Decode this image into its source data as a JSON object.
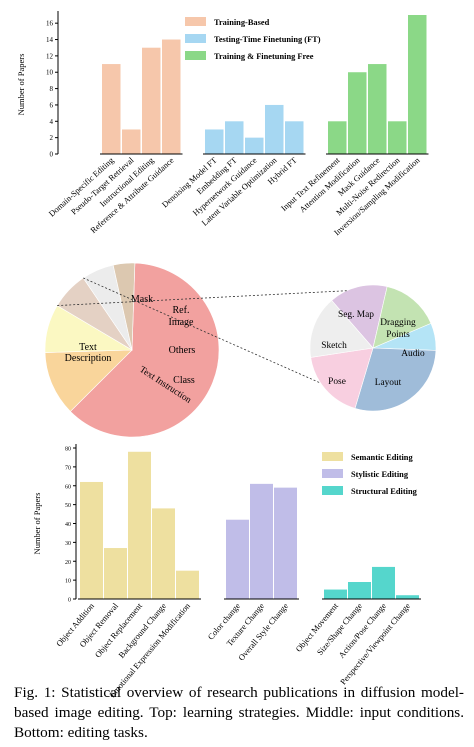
{
  "caption": "Fig. 1: Statistical overview of research publications in diffusion model-based image editing. Top: learning strategies. Middle: input conditions. Bottom: editing tasks.",
  "colors": {
    "training_based": "#f6c7ab",
    "testing_time_ft": "#a6d7f2",
    "training_free": "#8bd887",
    "semantic": "#eee0a0",
    "stylistic": "#c0bde8",
    "structural": "#55d6cc",
    "text_description": "#f2a19f",
    "mask": "#f9d59b",
    "ref_image": "#fbf8c2",
    "others": "#e4d1c4",
    "class": "#ececec",
    "text_instruction": "#dcc8b0",
    "seg_map": "#dcc4e2",
    "dragging_points": "#c3e3b2",
    "audio": "#b4e4f6",
    "layout": "#9fbcd9",
    "pose": "#f8cfe0",
    "sketch": "#eeeeee"
  },
  "chart_data": [
    {
      "type": "bar",
      "ylabel": "Number of Papers",
      "ylim": [
        0,
        17
      ],
      "yticks": [
        0,
        2,
        4,
        6,
        8,
        10,
        12,
        14,
        16
      ],
      "grid": false,
      "legend_position": "top",
      "series": [
        {
          "name": "Training-Based",
          "color": "#f6c7ab",
          "categories": [
            "Domain-Specific Editing",
            "Pseudo-Target Retrieval",
            "Instructional Editing",
            "Reference & Attribute Guidance"
          ],
          "values": [
            11,
            3,
            13,
            14
          ]
        },
        {
          "name": "Testing-Time Finetuning (FT)",
          "color": "#a6d7f2",
          "categories": [
            "Denoising Model FT",
            "Embedding FT",
            "Hypernetwork Guidance",
            "Latent Variable Optimization",
            "Hybrid FT"
          ],
          "values": [
            3,
            4,
            2,
            6,
            4
          ]
        },
        {
          "name": "Training & Finetuning Free",
          "color": "#8bd887",
          "categories": [
            "Input Text Refinement",
            "Attention Modification",
            "Mask Guidance",
            "Multi-Noise Redirection",
            "Inversion/Sampling Modification"
          ],
          "values": [
            4,
            10,
            11,
            4,
            17
          ]
        }
      ]
    },
    {
      "type": "pie",
      "slices": [
        {
          "label": "Text Description",
          "value": 62,
          "color": "#f2a19f"
        },
        {
          "label": "Mask",
          "value": 12,
          "color": "#f9d59b"
        },
        {
          "label": "Ref. Image",
          "value": 9,
          "color": "#fbf8c2"
        },
        {
          "label": "Others",
          "value": 7,
          "color": "#e4d1c4"
        },
        {
          "label": "Class",
          "value": 6,
          "color": "#ececec"
        },
        {
          "label": "Text Instruction",
          "value": 4,
          "color": "#dcc8b0"
        }
      ]
    },
    {
      "type": "pie",
      "slices": [
        {
          "label": "Seg. Map",
          "value": 15,
          "color": "#dcc4e2"
        },
        {
          "label": "Dragging Points",
          "value": 15,
          "color": "#c3e3b2"
        },
        {
          "label": "Audio",
          "value": 7,
          "color": "#b4e4f6"
        },
        {
          "label": "Layout",
          "value": 29,
          "color": "#9fbcd9"
        },
        {
          "label": "Pose",
          "value": 18,
          "color": "#f8cfe0"
        },
        {
          "label": "Sketch",
          "value": 16,
          "color": "#eeeeee"
        }
      ]
    },
    {
      "type": "bar",
      "ylabel": "Number of Papers",
      "ylim": [
        0,
        80
      ],
      "yticks": [
        0,
        10,
        20,
        30,
        40,
        50,
        60,
        70,
        80
      ],
      "grid": false,
      "legend_position": "top-right",
      "series": [
        {
          "name": "Semantic Editing",
          "color": "#eee0a0",
          "categories": [
            "Object Addition",
            "Object Removal",
            "Object Replacement",
            "Background Change",
            "Emotional Expression Modification"
          ],
          "values": [
            62,
            27,
            78,
            48,
            15
          ]
        },
        {
          "name": "Stylistic Editing",
          "color": "#c0bde8",
          "categories": [
            "Color change",
            "Texture Change",
            "Overall Style Change"
          ],
          "values": [
            42,
            61,
            59
          ]
        },
        {
          "name": "Structural Editing",
          "color": "#55d6cc",
          "categories": [
            "Object Movement",
            "Size/Shape Change",
            "Action/Pose Change",
            "Perspective/Viewpoint Change"
          ],
          "values": [
            5,
            9,
            17,
            2
          ]
        }
      ]
    }
  ]
}
